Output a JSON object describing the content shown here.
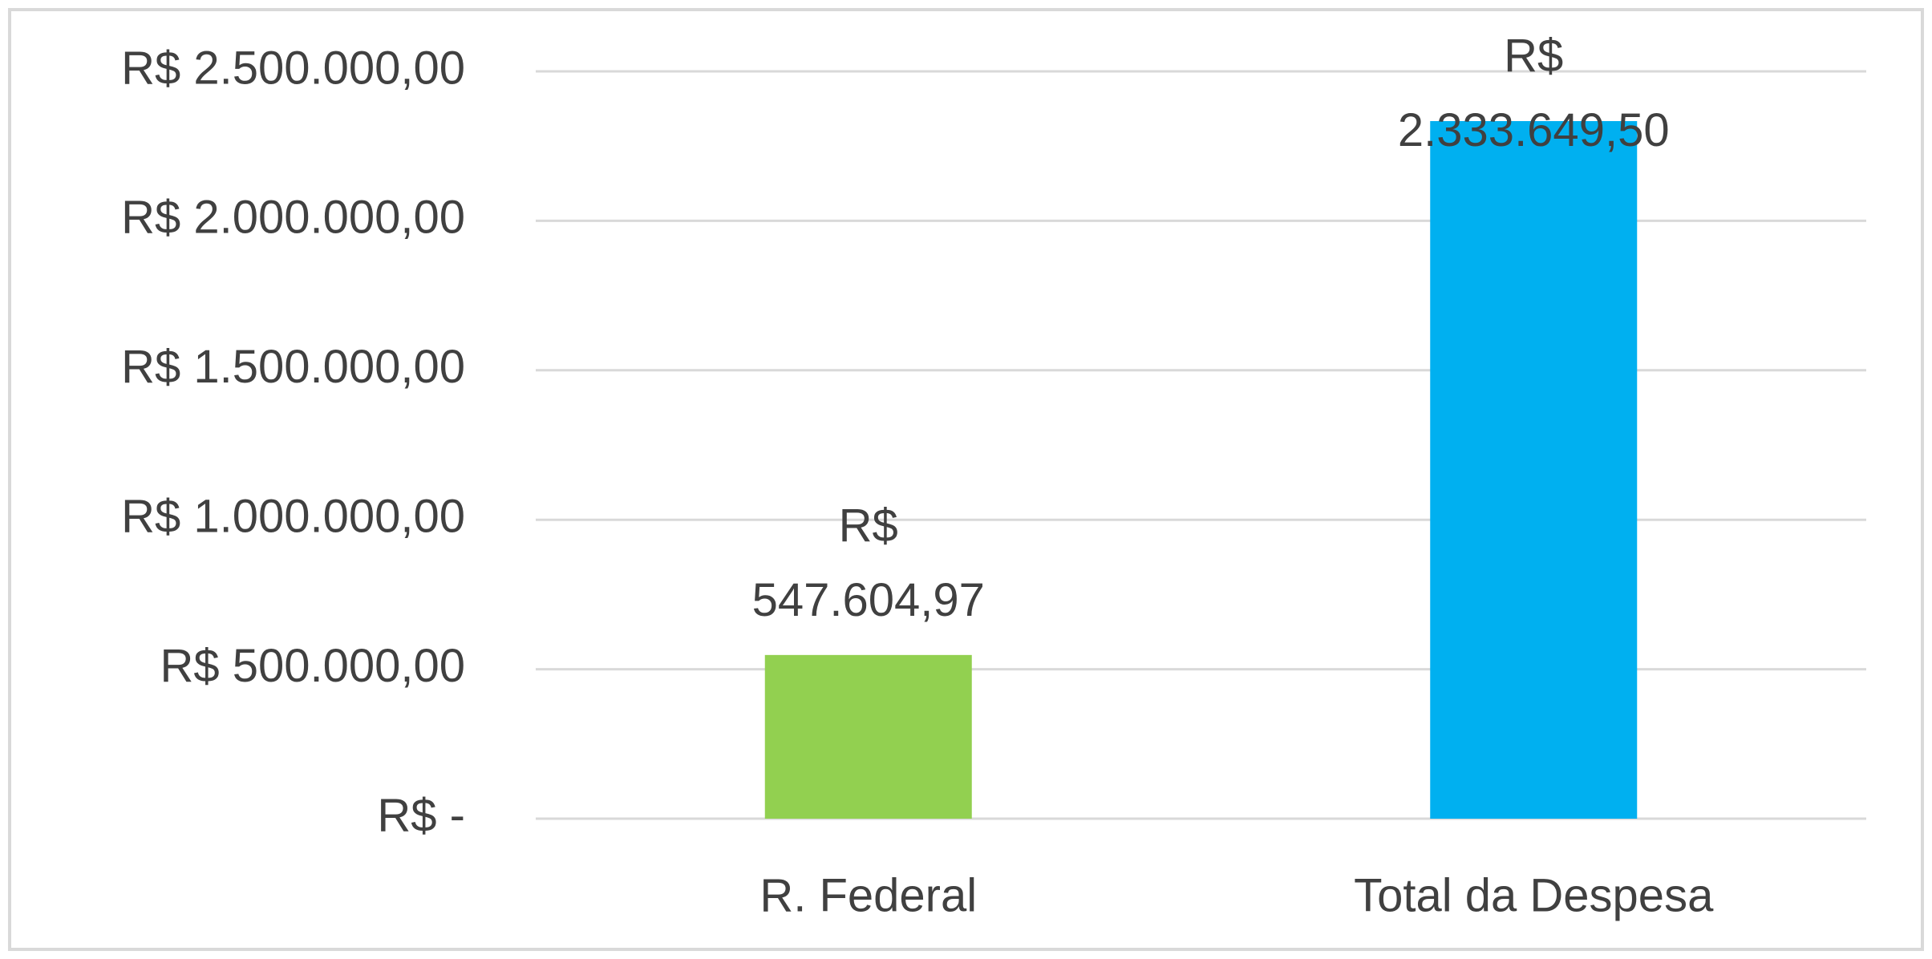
{
  "chart_data": {
    "type": "bar",
    "categories": [
      "R. Federal",
      "Total da Despesa"
    ],
    "values": [
      547604.97,
      2333649.5
    ],
    "value_labels": [
      "R$ 547.604,97",
      "R$ 2.333.649,50"
    ],
    "colors": [
      "#92d050",
      "#00b0f0"
    ],
    "ylim": [
      0,
      2500000
    ],
    "yticks": [
      {
        "value": 0,
        "label": "R$ -"
      },
      {
        "value": 500000,
        "label": "R$ 500.000,00"
      },
      {
        "value": 1000000,
        "label": "R$ 1.000.000,00"
      },
      {
        "value": 1500000,
        "label": "R$ 1.500.000,00"
      },
      {
        "value": 2000000,
        "label": "R$ 2.000.000,00"
      },
      {
        "value": 2500000,
        "label": "R$ 2.500.000,00"
      }
    ],
    "grid": true
  }
}
